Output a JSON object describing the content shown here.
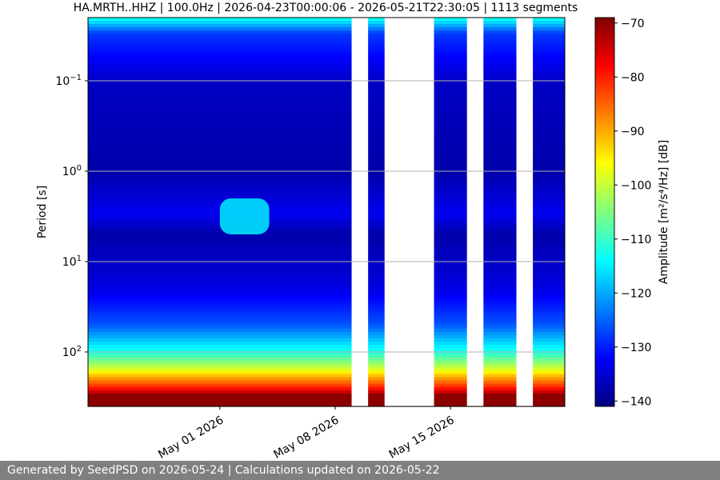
{
  "chart_data": {
    "type": "heatmap",
    "title": "HA.MRTH..HHZ | 100.0Hz | 2026-04-23T00:00:06 - 2026-05-21T22:30:05 | 1113 segments",
    "xlabel": "",
    "ylabel": "Period [s]",
    "y_scale": "log",
    "y_inverted": true,
    "ylim": [
      0.02,
      400
    ],
    "y_ticks": [
      {
        "value": 0.1,
        "label": "10",
        "exp": "−1"
      },
      {
        "value": 1,
        "label": "10",
        "exp": "0"
      },
      {
        "value": 10,
        "label": "10",
        "exp": "1"
      },
      {
        "value": 100,
        "label": "10",
        "exp": "2"
      }
    ],
    "x_range": [
      "2026-04-23T00:00:06",
      "2026-05-21T22:30:05"
    ],
    "x_ticks": [
      {
        "value": "2026-05-01",
        "label": "May 01 2026"
      },
      {
        "value": "2026-05-08",
        "label": "May 08 2026"
      },
      {
        "value": "2026-05-15",
        "label": "May 15 2026"
      }
    ],
    "grid": true,
    "data_gaps": [
      [
        "2026-05-09T00:00:00",
        "2026-05-10T00:00:00"
      ],
      [
        "2026-05-11T00:00:00",
        "2026-05-14T00:00:00"
      ],
      [
        "2026-05-16T00:00:00",
        "2026-05-17T00:00:00"
      ],
      [
        "2026-05-19T00:00:00",
        "2026-05-20T00:00:00"
      ]
    ],
    "colorbar": {
      "label": "Amplitude [m²/s⁴/Hz] [dB]",
      "colormap": "jet",
      "range": [
        -141,
        -69
      ],
      "ticks": [
        -70,
        -80,
        -90,
        -100,
        -110,
        -120,
        -130,
        -140
      ],
      "tick_labels": [
        "−70",
        "−80",
        "−90",
        "−100",
        "−110",
        "−120",
        "−130",
        "−140"
      ]
    },
    "amplitude_profile_db": [
      {
        "period": 0.02,
        "db": -112
      },
      {
        "period": 0.03,
        "db": -128
      },
      {
        "period": 0.1,
        "db": -136
      },
      {
        "period": 1,
        "db": -138
      },
      {
        "period": 3,
        "db": -133
      },
      {
        "period": 5,
        "db": -138
      },
      {
        "period": 20,
        "db": -134
      },
      {
        "period": 50,
        "db": -126
      },
      {
        "period": 100,
        "db": -112
      },
      {
        "period": 150,
        "db": -100
      },
      {
        "period": 200,
        "db": -88
      },
      {
        "period": 250,
        "db": -80
      },
      {
        "period": 300,
        "db": -70
      }
    ],
    "features": [
      {
        "x_start": "2026-05-01T00:00:00",
        "x_end": "2026-05-04T00:00:00",
        "period_range": [
          2,
          5
        ],
        "db": -115
      }
    ]
  },
  "footer": {
    "text": "Generated by SeedPSD on 2026-05-24 | Calculations updated on 2026-05-22"
  }
}
